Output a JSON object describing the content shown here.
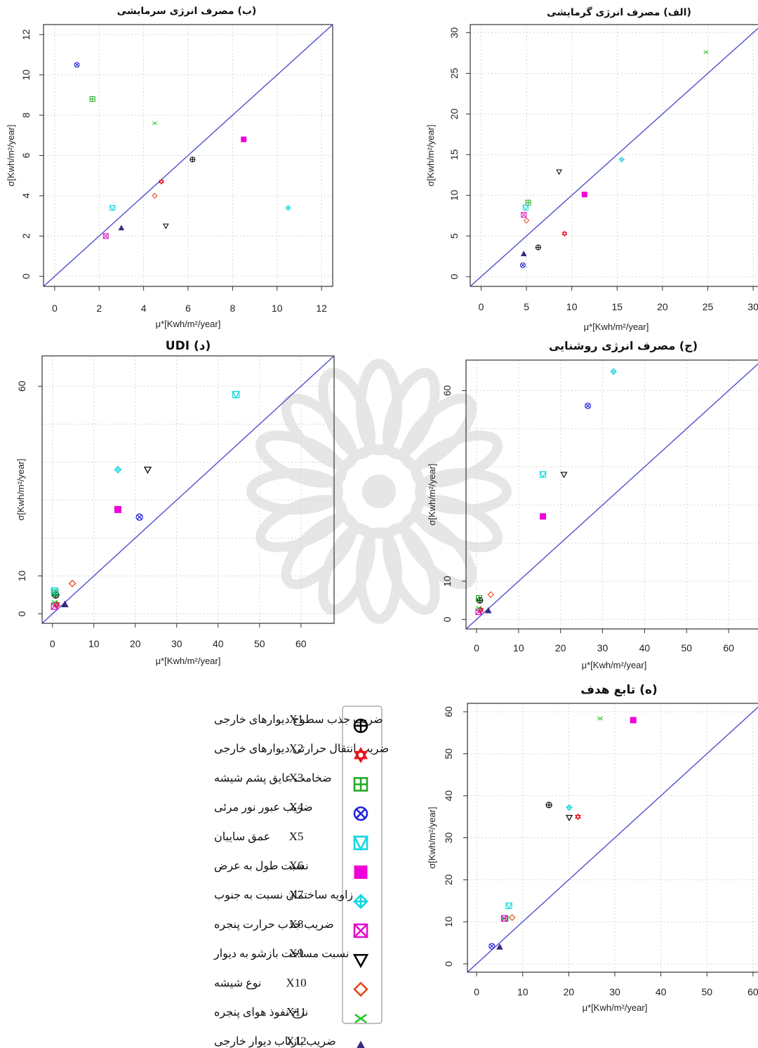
{
  "chart_data": [
    {
      "id": "cooling",
      "type": "scatter",
      "title": "(ب) مصرف انرژی سرمایشی",
      "xlabel": "μ*[Kwh/m²/year]",
      "ylabel": "σ[Kwh/m²/year]",
      "xlim": [
        -0.5,
        12.5
      ],
      "ylim": [
        -0.5,
        12.5
      ],
      "xticks": [
        0,
        2,
        4,
        6,
        8,
        10,
        12
      ],
      "yticks": [
        0,
        2,
        4,
        6,
        8,
        10,
        12
      ],
      "grid": true,
      "reference_line": "y = x",
      "points": [
        {
          "var": "X1",
          "x": 6.2,
          "y": 5.8
        },
        {
          "var": "X2",
          "x": 4.8,
          "y": 4.7
        },
        {
          "var": "X3",
          "x": 1.7,
          "y": 8.8
        },
        {
          "var": "X4",
          "x": 1.0,
          "y": 10.5
        },
        {
          "var": "X5",
          "x": 2.6,
          "y": 3.4
        },
        {
          "var": "X6",
          "x": 8.5,
          "y": 6.8
        },
        {
          "var": "X7",
          "x": 10.5,
          "y": 3.4
        },
        {
          "var": "X8",
          "x": 2.3,
          "y": 2.0
        },
        {
          "var": "X9",
          "x": 5.0,
          "y": 2.5
        },
        {
          "var": "X10",
          "x": 4.5,
          "y": 4.0
        },
        {
          "var": "X11",
          "x": 4.5,
          "y": 7.6
        },
        {
          "var": "X12",
          "x": 3.0,
          "y": 2.4
        }
      ]
    },
    {
      "id": "heating",
      "type": "scatter",
      "title": "(الف) مصرف انرژی گرمایشی",
      "xlabel": "μ*[Kwh/m²/year]",
      "ylabel": "σ[Kwh/m²/year]",
      "xlim": [
        -1.2,
        31
      ],
      "ylim": [
        -1.2,
        31
      ],
      "xticks": [
        0,
        5,
        10,
        15,
        20,
        25,
        30
      ],
      "yticks": [
        0,
        5,
        10,
        15,
        20,
        25,
        30
      ],
      "grid": true,
      "reference_line": "y = x",
      "points": [
        {
          "var": "X1",
          "x": 6.3,
          "y": 3.6
        },
        {
          "var": "X2",
          "x": 9.2,
          "y": 5.3
        },
        {
          "var": "X3",
          "x": 5.2,
          "y": 9.1
        },
        {
          "var": "X4",
          "x": 4.6,
          "y": 1.4
        },
        {
          "var": "X5",
          "x": 4.9,
          "y": 8.5
        },
        {
          "var": "X6",
          "x": 11.4,
          "y": 10.1
        },
        {
          "var": "X7",
          "x": 15.5,
          "y": 14.4
        },
        {
          "var": "X8",
          "x": 4.7,
          "y": 7.6
        },
        {
          "var": "X9",
          "x": 8.6,
          "y": 12.9
        },
        {
          "var": "X10",
          "x": 5.0,
          "y": 6.9
        },
        {
          "var": "X11",
          "x": 24.8,
          "y": 27.6
        },
        {
          "var": "X12",
          "x": 4.7,
          "y": 2.8
        }
      ]
    },
    {
      "id": "udi",
      "type": "scatter",
      "title": "(د) UDI",
      "xlabel": "μ*[Kwh/m²/year]",
      "ylabel": "σ[Kwh/m²/year]",
      "xlim": [
        -2.5,
        68
      ],
      "ylim": [
        -2.5,
        68
      ],
      "xticks": [
        0,
        10,
        20,
        30,
        40,
        50,
        60
      ],
      "yticks": [
        0,
        10,
        60
      ],
      "grid": true,
      "reference_line": "y = x",
      "points": [
        {
          "var": "X1",
          "x": 0.8,
          "y": 5.0
        },
        {
          "var": "X2",
          "x": 1.0,
          "y": 2.5
        },
        {
          "var": "X3",
          "x": 0.6,
          "y": 5.5
        },
        {
          "var": "X4",
          "x": 21.0,
          "y": 25.5
        },
        {
          "var": "X5",
          "x": 0.5,
          "y": 6.0
        },
        {
          "var": "X6",
          "x": 15.8,
          "y": 27.5
        },
        {
          "var": "X7",
          "x": 15.8,
          "y": 38.0
        },
        {
          "var": "X8",
          "x": 0.5,
          "y": 2.0
        },
        {
          "var": "X9",
          "x": 23.0,
          "y": 38.0
        },
        {
          "var": "X10",
          "x": 4.8,
          "y": 8.0
        },
        {
          "var": "X11",
          "x": 0.5,
          "y": 3.0
        },
        {
          "var": "X12",
          "x": 3.0,
          "y": 2.5
        },
        {
          "var": "X5",
          "x": 44.3,
          "y": 57.8
        }
      ]
    },
    {
      "id": "lighting",
      "type": "scatter",
      "title": "(ج) مصرف انرژی روشنایی",
      "xlabel": "μ*[Kwh/m²/year]",
      "ylabel": "σ[Kwh/m²/year]",
      "xlim": [
        -2.5,
        68
      ],
      "ylim": [
        -2.5,
        68
      ],
      "xticks": [
        0,
        10,
        20,
        30,
        40,
        50,
        60
      ],
      "yticks": [
        0,
        10,
        60
      ],
      "grid": true,
      "reference_line": "y = x",
      "points": [
        {
          "var": "X1",
          "x": 0.8,
          "y": 5.0
        },
        {
          "var": "X2",
          "x": 1.0,
          "y": 2.5
        },
        {
          "var": "X3",
          "x": 0.6,
          "y": 5.5
        },
        {
          "var": "X4",
          "x": 26.5,
          "y": 56.0
        },
        {
          "var": "X5",
          "x": 15.8,
          "y": 38.0
        },
        {
          "var": "X6",
          "x": 15.8,
          "y": 27.0
        },
        {
          "var": "X7",
          "x": 32.6,
          "y": 65.0
        },
        {
          "var": "X8",
          "x": 0.5,
          "y": 2.0
        },
        {
          "var": "X9",
          "x": 20.8,
          "y": 38.0
        },
        {
          "var": "X10",
          "x": 3.4,
          "y": 6.5
        },
        {
          "var": "X11",
          "x": 0.5,
          "y": 3.0
        },
        {
          "var": "X12",
          "x": 2.8,
          "y": 2.3
        }
      ]
    },
    {
      "id": "objective",
      "type": "scatter",
      "title": "(ه) تابع هدف",
      "xlabel": "μ*[Kwh/m²/year]",
      "ylabel": "σ[Kwh/m²/year]",
      "xlim": [
        -2,
        62
      ],
      "ylim": [
        -2,
        62
      ],
      "xticks": [
        0,
        10,
        20,
        30,
        40,
        50,
        60
      ],
      "yticks": [
        0,
        10,
        20,
        30,
        40,
        50,
        60
      ],
      "grid": true,
      "reference_line": "y = x",
      "points": [
        {
          "var": "X1",
          "x": 15.7,
          "y": 37.8
        },
        {
          "var": "X2",
          "x": 22.0,
          "y": 35.0
        },
        {
          "var": "X3",
          "x": 6.2,
          "y": 10.8
        },
        {
          "var": "X4",
          "x": 3.3,
          "y": 4.2
        },
        {
          "var": "X5",
          "x": 7.0,
          "y": 13.8
        },
        {
          "var": "X6",
          "x": 34.0,
          "y": 58.0
        },
        {
          "var": "X7",
          "x": 20.1,
          "y": 37.2
        },
        {
          "var": "X8",
          "x": 6.0,
          "y": 10.8
        },
        {
          "var": "X9",
          "x": 20.1,
          "y": 34.8
        },
        {
          "var": "X10",
          "x": 7.7,
          "y": 11.0
        },
        {
          "var": "X11",
          "x": 26.8,
          "y": 58.4
        },
        {
          "var": "X12",
          "x": 5.0,
          "y": 4.0
        }
      ]
    }
  ],
  "legend": {
    "items": [
      {
        "code": "X1",
        "label": "ضریب جذب سطوح دیوارهای خارجی",
        "symbol": "circle-plus",
        "color": "#000000"
      },
      {
        "code": "X2",
        "label": "ضریب انتقال حرارتی دیوارهای خارجی",
        "symbol": "star-of-david",
        "color": "#e8111f"
      },
      {
        "code": "X3",
        "label": "ضخامت عایق پشم شیشه",
        "symbol": "square-plus",
        "color": "#22a822"
      },
      {
        "code": "X4",
        "label": "ضریب عبور نور مرئی",
        "symbol": "circle-x",
        "color": "#2222dd"
      },
      {
        "code": "X5",
        "label": "عمق سایبان",
        "symbol": "square-triangle",
        "color": "#10d8e0"
      },
      {
        "code": "X6",
        "label": "نسبت طول به عرض",
        "symbol": "filled-square",
        "color": "#f000d8"
      },
      {
        "code": "X7",
        "label": "زاویه ساختمان نسبت به جنوب",
        "symbol": "diamond-plus",
        "color": "#10d8e0"
      },
      {
        "code": "X8",
        "label": "ضریب جذب حرارت پنجره",
        "symbol": "square-x",
        "color": "#e010c8"
      },
      {
        "code": "X9",
        "label": "نسبت مساحت بازشو به دیوار",
        "symbol": "triangle-down",
        "color": "#000000"
      },
      {
        "code": "X10",
        "label": "نوع شیشه",
        "symbol": "diamond",
        "color": "#e84818"
      },
      {
        "code": "X11",
        "label": "نرخ نفوذ هوای پنجره",
        "symbol": "cross",
        "color": "#22c822"
      },
      {
        "code": "X12",
        "label": "ضریب بازتاب دیوار خارجی",
        "symbol": "filled-triangle",
        "color": "#3a2a80"
      }
    ]
  },
  "colors": {
    "reference_line": "#4444cc",
    "grid": "#d6d6d6",
    "watermark": "#d3d3d3"
  }
}
